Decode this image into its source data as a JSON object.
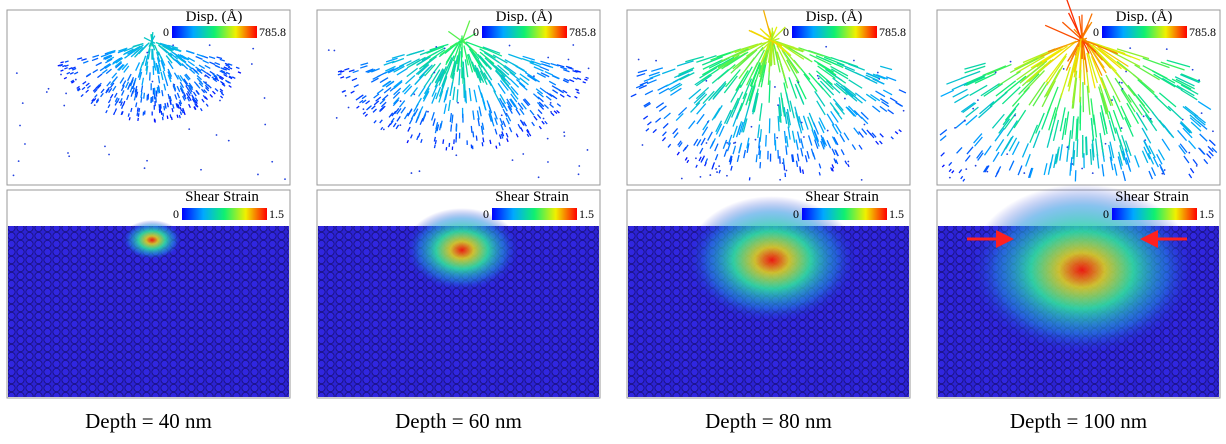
{
  "panels": [
    {
      "disp_label": "Disp. (Å)",
      "disp_min": 0,
      "disp_max": 785.8,
      "strain_label": "Shear Strain",
      "strain_min": 0,
      "strain_max": 1.5,
      "caption": "Depth = 40 nm"
    },
    {
      "disp_label": "Disp. (Å)",
      "disp_min": 0,
      "disp_max": 785.8,
      "strain_label": "Shear Strain",
      "strain_min": 0,
      "strain_max": 1.5,
      "caption": "Depth = 60 nm"
    },
    {
      "disp_label": "Disp. (Å)",
      "disp_min": 0,
      "disp_max": 785.8,
      "strain_label": "Shear Strain",
      "strain_min": 0,
      "strain_max": 1.5,
      "caption": "Depth = 80 nm"
    },
    {
      "disp_label": "Disp. (Å)",
      "disp_min": 0,
      "disp_max": 785.8,
      "strain_label": "Shear Strain",
      "strain_min": 0,
      "strain_max": 1.5,
      "caption": "Depth = 100 nm"
    }
  ]
}
